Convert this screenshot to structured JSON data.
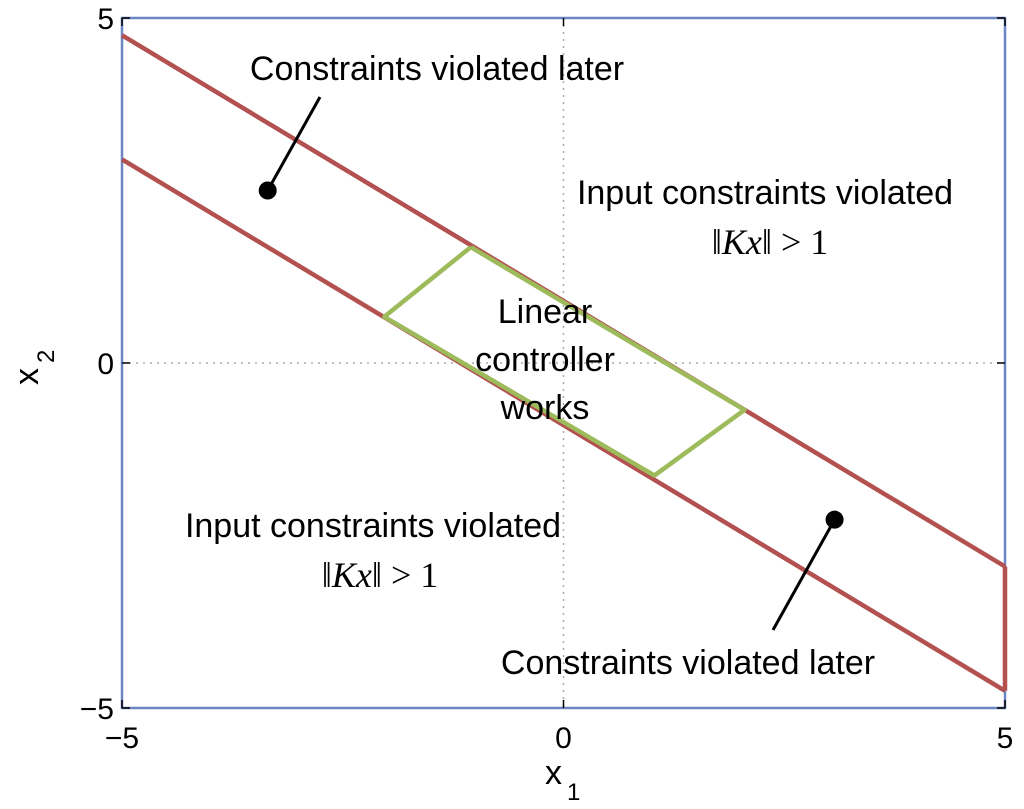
{
  "chart_data": {
    "type": "line",
    "title": "",
    "xlabel": "x",
    "xlabel_sub": "1",
    "ylabel": "x",
    "ylabel_sub": "2",
    "xlim": [
      -5,
      5
    ],
    "ylim": [
      -5,
      5
    ],
    "x_ticks": [
      {
        "value": -5,
        "label": "−5"
      },
      {
        "value": 0,
        "label": "0"
      },
      {
        "value": 5,
        "label": "5"
      }
    ],
    "y_ticks": [
      {
        "value": -5,
        "label": "−5"
      },
      {
        "value": 0,
        "label": "0"
      },
      {
        "value": 5,
        "label": "5"
      }
    ],
    "grid": "dotted lines at zero",
    "colors": {
      "frame": "#6c86c4",
      "constraint_lines": "#b25150",
      "linear_region": "#9dbb5a",
      "grid": "#aaaaaa"
    },
    "series": [
      {
        "role": "upper-constraint",
        "x": [
          -5,
          5
        ],
        "y": [
          4.75,
          -2.95
        ]
      },
      {
        "role": "lower-constraint",
        "x": [
          -5,
          5
        ],
        "y": [
          2.95,
          -4.75
        ]
      },
      {
        "role": "right-edge",
        "x": [
          5,
          5
        ],
        "y": [
          -2.95,
          -4.75
        ]
      },
      {
        "role": "linear-region",
        "x": [
          -1.05,
          2.05,
          1.03,
          -2.03,
          -1.05
        ],
        "y": [
          1.68,
          -0.68,
          -1.63,
          0.67,
          1.68
        ]
      }
    ],
    "points": [
      {
        "x": -3.35,
        "y": 2.5
      },
      {
        "x": 3.07,
        "y": -2.27
      }
    ],
    "annotations": {
      "top_left": "Constraints violated later",
      "bottom_right": "Constraints violated later",
      "upper_right_line1": "Input constraints violated",
      "lower_left_line1": "Input constraints violated",
      "math_bars_left": "‖",
      "math_var": "Kx",
      "math_bars_right": "‖",
      "math_rhs": " > 1",
      "center_line1": "Linear",
      "center_line2": "controller",
      "center_line3": "works"
    }
  }
}
